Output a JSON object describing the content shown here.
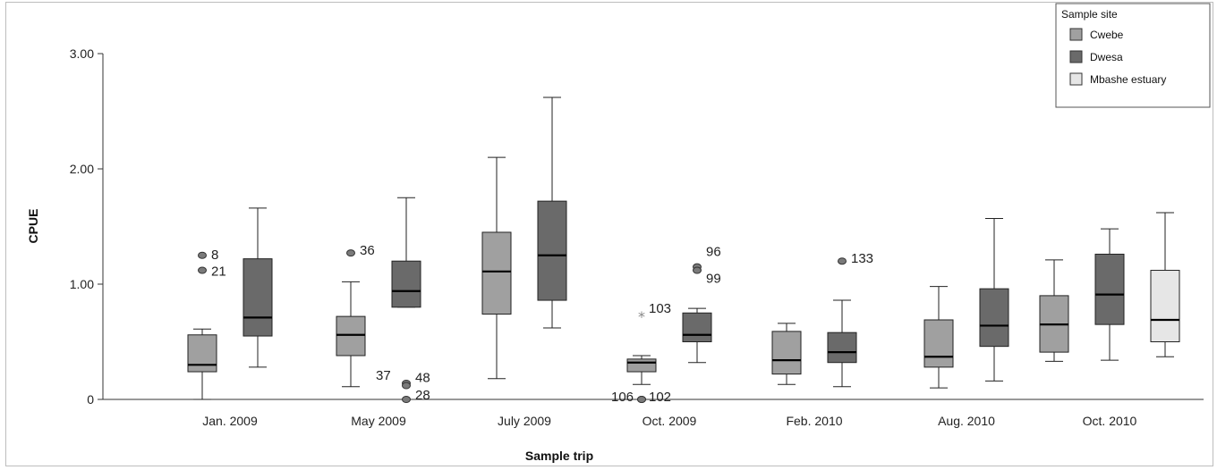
{
  "chart_data": {
    "type": "boxplot",
    "xlabel": "Sample trip",
    "ylabel": "CPUE",
    "ylim": [
      0,
      3
    ],
    "yticks": [
      {
        "value": 0,
        "label": "0"
      },
      {
        "value": 1,
        "label": "1.00"
      },
      {
        "value": 2,
        "label": "2.00"
      },
      {
        "value": 3,
        "label": "3.00"
      }
    ],
    "categories": [
      "Jan. 2009",
      "May 2009",
      "July 2009",
      "Oct. 2009",
      "Feb. 2010",
      "Aug. 2010",
      "Oct. 2010"
    ],
    "legend": {
      "title": "Sample site",
      "position": "top-right",
      "entries": [
        {
          "name": "Cwebe",
          "color": "#a0a0a0"
        },
        {
          "name": "Dwesa",
          "color": "#6a6a6a"
        },
        {
          "name": "Mbashe estuary",
          "color": "#e6e6e6"
        }
      ]
    },
    "boxes": [
      {
        "trip": "Jan. 2009",
        "site": "Cwebe",
        "min": 0.0,
        "q1": 0.24,
        "median": 0.3,
        "q3": 0.56,
        "max": 0.61
      },
      {
        "trip": "Jan. 2009",
        "site": "Dwesa",
        "min": 0.28,
        "q1": 0.55,
        "median": 0.71,
        "q3": 1.22,
        "max": 1.66
      },
      {
        "trip": "May 2009",
        "site": "Cwebe",
        "min": 0.11,
        "q1": 0.38,
        "median": 0.56,
        "q3": 0.72,
        "max": 1.02
      },
      {
        "trip": "May 2009",
        "site": "Dwesa",
        "min": 0.8,
        "q1": 0.8,
        "median": 0.94,
        "q3": 1.2,
        "max": 1.75
      },
      {
        "trip": "July 2009",
        "site": "Cwebe",
        "min": 0.18,
        "q1": 0.74,
        "median": 1.11,
        "q3": 1.45,
        "max": 2.1
      },
      {
        "trip": "July 2009",
        "site": "Dwesa",
        "min": 0.62,
        "q1": 0.86,
        "median": 1.25,
        "q3": 1.72,
        "max": 2.62
      },
      {
        "trip": "Oct. 2009",
        "site": "Cwebe",
        "min": 0.13,
        "q1": 0.24,
        "median": 0.32,
        "q3": 0.35,
        "max": 0.38
      },
      {
        "trip": "Oct. 2009",
        "site": "Dwesa",
        "min": 0.32,
        "q1": 0.5,
        "median": 0.56,
        "q3": 0.75,
        "max": 0.79
      },
      {
        "trip": "Feb. 2010",
        "site": "Cwebe",
        "min": 0.13,
        "q1": 0.22,
        "median": 0.34,
        "q3": 0.59,
        "max": 0.66
      },
      {
        "trip": "Feb. 2010",
        "site": "Dwesa",
        "min": 0.11,
        "q1": 0.32,
        "median": 0.41,
        "q3": 0.58,
        "max": 0.86
      },
      {
        "trip": "Aug. 2010",
        "site": "Cwebe",
        "min": 0.1,
        "q1": 0.28,
        "median": 0.37,
        "q3": 0.69,
        "max": 0.98
      },
      {
        "trip": "Aug. 2010",
        "site": "Dwesa",
        "min": 0.16,
        "q1": 0.46,
        "median": 0.64,
        "q3": 0.96,
        "max": 1.57
      },
      {
        "trip": "Oct. 2010",
        "site": "Cwebe",
        "min": 0.33,
        "q1": 0.41,
        "median": 0.65,
        "q3": 0.9,
        "max": 1.21
      },
      {
        "trip": "Oct. 2010",
        "site": "Dwesa",
        "min": 0.34,
        "q1": 0.65,
        "median": 0.91,
        "q3": 1.26,
        "max": 1.48
      },
      {
        "trip": "Oct. 2010",
        "site": "Mbashe estuary",
        "min": 0.37,
        "q1": 0.5,
        "median": 0.69,
        "q3": 1.12,
        "max": 1.62
      }
    ],
    "outliers": [
      {
        "trip": "Jan. 2009",
        "site": "Cwebe",
        "value": 1.25,
        "label": "8",
        "marker": "circle"
      },
      {
        "trip": "Jan. 2009",
        "site": "Cwebe",
        "value": 1.12,
        "label": "21",
        "marker": "circle"
      },
      {
        "trip": "May 2009",
        "site": "Cwebe",
        "value": 1.27,
        "label": "36",
        "marker": "circle"
      },
      {
        "trip": "May 2009",
        "site": "Dwesa",
        "value": 0.14,
        "label": "37",
        "marker": "circle"
      },
      {
        "trip": "May 2009",
        "site": "Dwesa",
        "value": 0.12,
        "label": "48",
        "marker": "circle"
      },
      {
        "trip": "May 2009",
        "site": "Dwesa",
        "value": 0.0,
        "label": "28",
        "marker": "circle"
      },
      {
        "trip": "Oct. 2009",
        "site": "Cwebe",
        "value": 0.72,
        "label": "103",
        "marker": "star"
      },
      {
        "trip": "Oct. 2009",
        "site": "Cwebe",
        "value": 0.0,
        "label": "106",
        "marker": "circle"
      },
      {
        "trip": "Oct. 2009",
        "site": "Cwebe",
        "value": 0.0,
        "label": "102",
        "marker": "circle"
      },
      {
        "trip": "Oct. 2009",
        "site": "Dwesa",
        "value": 1.15,
        "label": "96",
        "marker": "circle"
      },
      {
        "trip": "Oct. 2009",
        "site": "Dwesa",
        "value": 1.12,
        "label": "99",
        "marker": "circle"
      },
      {
        "trip": "Feb. 2010",
        "site": "Dwesa",
        "value": 1.2,
        "label": "133",
        "marker": "circle"
      }
    ]
  }
}
